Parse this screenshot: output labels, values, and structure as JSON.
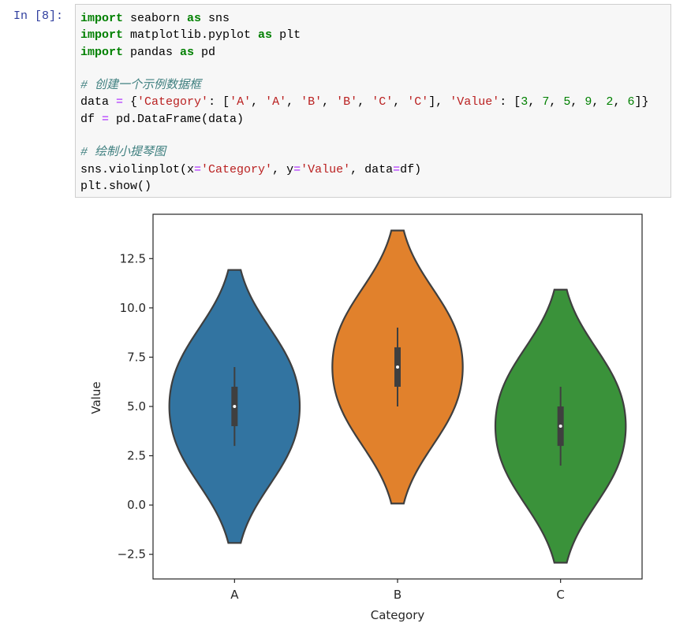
{
  "prompt": "In [8]:",
  "code_blocks": [
    [
      "import seaborn as sns",
      "import matplotlib.pyplot as plt",
      "import pandas as pd"
    ],
    [
      "# 创建一个示例数据框",
      "data = {'Category': ['A', 'A', 'B', 'B', 'C', 'C'], 'Value': [3, 7, 5, 9, 2, 6]}",
      "df = pd.DataFrame(data)"
    ],
    [
      "# 绘制小提琴图",
      "sns.violinplot(x='Category', y='Value', data=df)",
      "plt.show()"
    ]
  ],
  "chart_data": {
    "type": "violin",
    "xlabel": "Category",
    "ylabel": "Value",
    "categories": [
      "A",
      "B",
      "C"
    ],
    "colors": [
      "#3274a1",
      "#e1812c",
      "#3a923a"
    ],
    "data": [
      [
        3,
        7
      ],
      [
        5,
        9
      ],
      [
        2,
        6
      ]
    ],
    "box": [
      {
        "low": 3,
        "q1": 4,
        "median": 5,
        "q3": 6,
        "high": 7
      },
      {
        "low": 5,
        "q1": 6,
        "median": 7,
        "q3": 8,
        "high": 9
      },
      {
        "low": 2,
        "q1": 3,
        "median": 4,
        "q3": 5,
        "high": 6
      }
    ],
    "ylim": [
      -3.75,
      14.75
    ],
    "yticks": [
      {
        "value": -2.5,
        "label": "−2.5"
      },
      {
        "value": 0,
        "label": "0.0"
      },
      2.5,
      {
        "value": 5,
        "label": "5.0"
      },
      7.5,
      {
        "value": 10,
        "label": "10.0"
      },
      12.5
    ]
  }
}
